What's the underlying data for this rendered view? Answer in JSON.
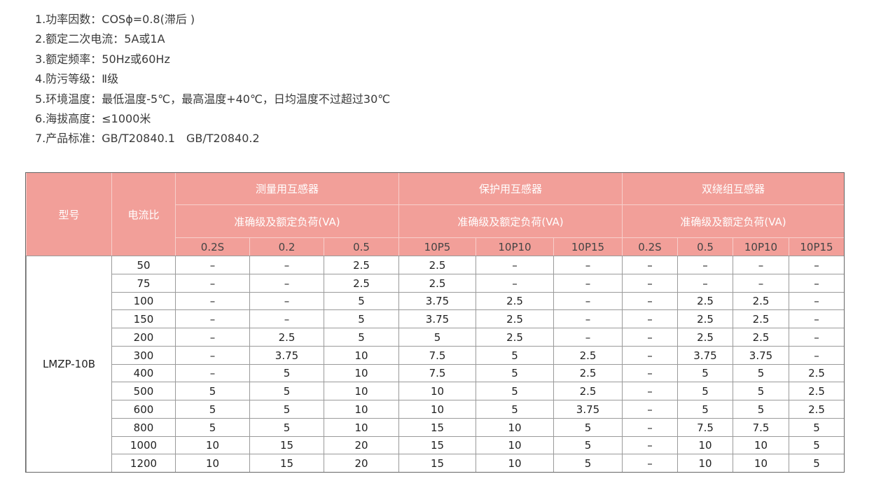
{
  "specs": [
    "1.功率因数：COSϕ=0.8(滞后 )",
    "2.额定二次电流：5A或1A",
    "3.额定频率：50Hz或60Hz",
    "4.防污等级：Ⅱ级",
    "5.环境温度：最低温度-5℃，最高温度+40℃，日均温度不过超过30℃",
    "6.海拔高度：≤1000米",
    "7.产品标准：GB/T20840.1　GB/T20840.2"
  ],
  "table": {
    "model_header": "型号",
    "ratio_header": "电流比",
    "groups": [
      {
        "title": "测量用互感器",
        "subtitle": "准确级及额定负荷(VA)",
        "columns": [
          "0.2S",
          "0.2",
          "0.5"
        ]
      },
      {
        "title": "保护用互感器",
        "subtitle": "准确级及额定负荷(VA)",
        "columns": [
          "10P5",
          "10P10",
          "10P15"
        ]
      },
      {
        "title": "双绕组互感器",
        "subtitle": "准确级及额定负荷(VA)",
        "columns": [
          "0.2S",
          "0.5",
          "10P10",
          "10P15"
        ]
      }
    ],
    "model": "LMZP-10B",
    "rows": [
      {
        "ratio": "50",
        "cells": [
          "–",
          "–",
          "2.5",
          "2.5",
          "–",
          "–",
          "–",
          "–",
          "–",
          "–"
        ]
      },
      {
        "ratio": "75",
        "cells": [
          "–",
          "–",
          "2.5",
          "2.5",
          "–",
          "–",
          "–",
          "–",
          "–",
          "–"
        ]
      },
      {
        "ratio": "100",
        "cells": [
          "–",
          "–",
          "5",
          "3.75",
          "2.5",
          "–",
          "–",
          "2.5",
          "2.5",
          "–"
        ]
      },
      {
        "ratio": "150",
        "cells": [
          "–",
          "–",
          "5",
          "3.75",
          "2.5",
          "–",
          "–",
          "2.5",
          "2.5",
          "–"
        ]
      },
      {
        "ratio": "200",
        "cells": [
          "–",
          "2.5",
          "5",
          "5",
          "2.5",
          "–",
          "–",
          "2.5",
          "2.5",
          "–"
        ]
      },
      {
        "ratio": "300",
        "cells": [
          "–",
          "3.75",
          "10",
          "7.5",
          "5",
          "2.5",
          "–",
          "3.75",
          "3.75",
          "–"
        ]
      },
      {
        "ratio": "400",
        "cells": [
          "–",
          "5",
          "10",
          "7.5",
          "5",
          "2.5",
          "–",
          "5",
          "5",
          "2.5"
        ]
      },
      {
        "ratio": "500",
        "cells": [
          "5",
          "5",
          "10",
          "10",
          "5",
          "2.5",
          "–",
          "5",
          "5",
          "2.5"
        ]
      },
      {
        "ratio": "600",
        "cells": [
          "5",
          "5",
          "10",
          "10",
          "5",
          "3.75",
          "–",
          "5",
          "5",
          "2.5"
        ]
      },
      {
        "ratio": "800",
        "cells": [
          "5",
          "5",
          "10",
          "15",
          "10",
          "5",
          "–",
          "7.5",
          "7.5",
          "5"
        ]
      },
      {
        "ratio": "1000",
        "cells": [
          "10",
          "15",
          "20",
          "15",
          "10",
          "5",
          "–",
          "10",
          "10",
          "5"
        ]
      },
      {
        "ratio": "1200",
        "cells": [
          "10",
          "15",
          "20",
          "15",
          "10",
          "5",
          "–",
          "10",
          "10",
          "5"
        ]
      }
    ]
  }
}
